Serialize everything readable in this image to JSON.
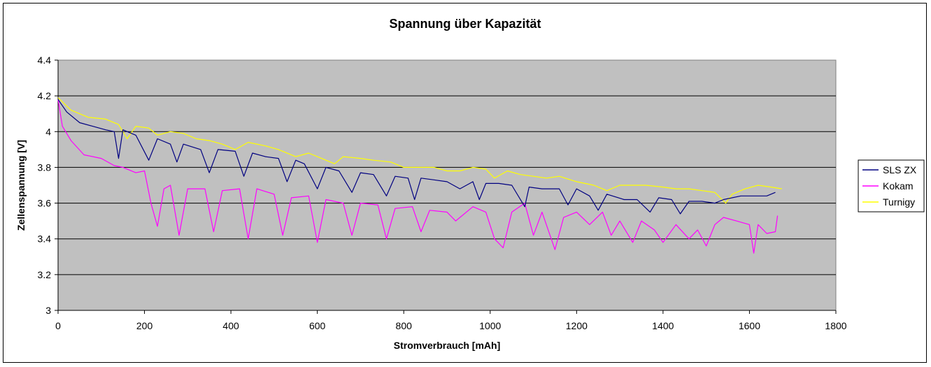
{
  "chart_data": {
    "type": "line",
    "title": "Spannung über Kapazität",
    "xlabel": "Stromverbrauch [mAh]",
    "ylabel": "Zellenspannung [V]",
    "xlim": [
      0,
      1800
    ],
    "ylim": [
      3,
      4.4
    ],
    "x_ticks": [
      "0",
      "200",
      "400",
      "600",
      "800",
      "1000",
      "1200",
      "1400",
      "1600",
      "1800"
    ],
    "y_ticks": [
      "3",
      "3.2",
      "3.4",
      "3.6",
      "3.8",
      "4",
      "4.2",
      "4.4"
    ],
    "grid": "horizontal",
    "plot_background": "#C0C0C0",
    "legend_position": "right",
    "series": [
      {
        "name": "SLS ZX",
        "color": "#000080",
        "points": [
          [
            0,
            4.18
          ],
          [
            20,
            4.11
          ],
          [
            50,
            4.05
          ],
          [
            80,
            4.03
          ],
          [
            110,
            4.01
          ],
          [
            130,
            4.0
          ],
          [
            140,
            3.85
          ],
          [
            150,
            4.01
          ],
          [
            180,
            3.98
          ],
          [
            210,
            3.84
          ],
          [
            230,
            3.96
          ],
          [
            260,
            3.93
          ],
          [
            275,
            3.83
          ],
          [
            290,
            3.93
          ],
          [
            330,
            3.9
          ],
          [
            350,
            3.77
          ],
          [
            370,
            3.9
          ],
          [
            410,
            3.89
          ],
          [
            430,
            3.75
          ],
          [
            450,
            3.88
          ],
          [
            480,
            3.86
          ],
          [
            510,
            3.85
          ],
          [
            530,
            3.72
          ],
          [
            550,
            3.84
          ],
          [
            570,
            3.82
          ],
          [
            600,
            3.68
          ],
          [
            620,
            3.8
          ],
          [
            650,
            3.78
          ],
          [
            680,
            3.66
          ],
          [
            700,
            3.77
          ],
          [
            730,
            3.76
          ],
          [
            760,
            3.64
          ],
          [
            780,
            3.75
          ],
          [
            810,
            3.74
          ],
          [
            825,
            3.62
          ],
          [
            840,
            3.74
          ],
          [
            870,
            3.73
          ],
          [
            900,
            3.72
          ],
          [
            930,
            3.68
          ],
          [
            960,
            3.72
          ],
          [
            975,
            3.62
          ],
          [
            990,
            3.71
          ],
          [
            1020,
            3.71
          ],
          [
            1050,
            3.7
          ],
          [
            1080,
            3.58
          ],
          [
            1090,
            3.69
          ],
          [
            1120,
            3.68
          ],
          [
            1160,
            3.68
          ],
          [
            1180,
            3.59
          ],
          [
            1200,
            3.68
          ],
          [
            1230,
            3.64
          ],
          [
            1250,
            3.56
          ],
          [
            1270,
            3.65
          ],
          [
            1310,
            3.62
          ],
          [
            1340,
            3.62
          ],
          [
            1370,
            3.55
          ],
          [
            1390,
            3.63
          ],
          [
            1420,
            3.62
          ],
          [
            1440,
            3.54
          ],
          [
            1460,
            3.61
          ],
          [
            1490,
            3.61
          ],
          [
            1520,
            3.6
          ],
          [
            1540,
            3.62
          ],
          [
            1580,
            3.64
          ],
          [
            1610,
            3.64
          ],
          [
            1640,
            3.64
          ],
          [
            1660,
            3.66
          ]
        ]
      },
      {
        "name": "Kokam",
        "color": "#FF00FF",
        "points": [
          [
            0,
            4.18
          ],
          [
            10,
            4.03
          ],
          [
            30,
            3.95
          ],
          [
            60,
            3.87
          ],
          [
            100,
            3.85
          ],
          [
            130,
            3.81
          ],
          [
            150,
            3.8
          ],
          [
            180,
            3.77
          ],
          [
            200,
            3.78
          ],
          [
            215,
            3.6
          ],
          [
            230,
            3.47
          ],
          [
            245,
            3.68
          ],
          [
            260,
            3.7
          ],
          [
            280,
            3.42
          ],
          [
            300,
            3.68
          ],
          [
            340,
            3.68
          ],
          [
            360,
            3.44
          ],
          [
            380,
            3.67
          ],
          [
            420,
            3.68
          ],
          [
            440,
            3.4
          ],
          [
            460,
            3.68
          ],
          [
            500,
            3.65
          ],
          [
            520,
            3.42
          ],
          [
            540,
            3.63
          ],
          [
            580,
            3.64
          ],
          [
            600,
            3.38
          ],
          [
            620,
            3.62
          ],
          [
            660,
            3.6
          ],
          [
            680,
            3.42
          ],
          [
            700,
            3.6
          ],
          [
            740,
            3.59
          ],
          [
            760,
            3.4
          ],
          [
            780,
            3.57
          ],
          [
            820,
            3.58
          ],
          [
            840,
            3.44
          ],
          [
            860,
            3.56
          ],
          [
            900,
            3.55
          ],
          [
            920,
            3.5
          ],
          [
            960,
            3.58
          ],
          [
            990,
            3.55
          ],
          [
            1010,
            3.4
          ],
          [
            1030,
            3.35
          ],
          [
            1050,
            3.55
          ],
          [
            1080,
            3.6
          ],
          [
            1100,
            3.42
          ],
          [
            1120,
            3.55
          ],
          [
            1150,
            3.34
          ],
          [
            1170,
            3.52
          ],
          [
            1200,
            3.55
          ],
          [
            1230,
            3.48
          ],
          [
            1260,
            3.55
          ],
          [
            1280,
            3.42
          ],
          [
            1300,
            3.5
          ],
          [
            1330,
            3.38
          ],
          [
            1350,
            3.5
          ],
          [
            1380,
            3.45
          ],
          [
            1400,
            3.38
          ],
          [
            1430,
            3.48
          ],
          [
            1460,
            3.4
          ],
          [
            1480,
            3.45
          ],
          [
            1500,
            3.36
          ],
          [
            1520,
            3.48
          ],
          [
            1540,
            3.52
          ],
          [
            1570,
            3.5
          ],
          [
            1600,
            3.48
          ],
          [
            1610,
            3.32
          ],
          [
            1620,
            3.48
          ],
          [
            1640,
            3.43
          ],
          [
            1660,
            3.44
          ],
          [
            1665,
            3.53
          ]
        ]
      },
      {
        "name": "Turnigy",
        "color": "#FFFF00",
        "points": [
          [
            0,
            4.19
          ],
          [
            30,
            4.12
          ],
          [
            70,
            4.08
          ],
          [
            110,
            4.07
          ],
          [
            140,
            4.04
          ],
          [
            160,
            3.96
          ],
          [
            180,
            4.03
          ],
          [
            210,
            4.02
          ],
          [
            230,
            3.98
          ],
          [
            260,
            4.0
          ],
          [
            290,
            3.99
          ],
          [
            320,
            3.96
          ],
          [
            350,
            3.95
          ],
          [
            380,
            3.93
          ],
          [
            410,
            3.9
          ],
          [
            440,
            3.94
          ],
          [
            480,
            3.92
          ],
          [
            510,
            3.9
          ],
          [
            550,
            3.86
          ],
          [
            580,
            3.88
          ],
          [
            610,
            3.85
          ],
          [
            640,
            3.82
          ],
          [
            660,
            3.86
          ],
          [
            700,
            3.85
          ],
          [
            730,
            3.84
          ],
          [
            770,
            3.83
          ],
          [
            800,
            3.8
          ],
          [
            840,
            3.8
          ],
          [
            870,
            3.8
          ],
          [
            900,
            3.78
          ],
          [
            930,
            3.78
          ],
          [
            960,
            3.8
          ],
          [
            990,
            3.79
          ],
          [
            1010,
            3.74
          ],
          [
            1040,
            3.78
          ],
          [
            1070,
            3.76
          ],
          [
            1100,
            3.75
          ],
          [
            1130,
            3.74
          ],
          [
            1160,
            3.75
          ],
          [
            1200,
            3.72
          ],
          [
            1240,
            3.7
          ],
          [
            1270,
            3.67
          ],
          [
            1300,
            3.7
          ],
          [
            1330,
            3.7
          ],
          [
            1360,
            3.7
          ],
          [
            1400,
            3.69
          ],
          [
            1430,
            3.68
          ],
          [
            1460,
            3.68
          ],
          [
            1490,
            3.67
          ],
          [
            1520,
            3.66
          ],
          [
            1545,
            3.6
          ],
          [
            1560,
            3.65
          ],
          [
            1590,
            3.68
          ],
          [
            1620,
            3.7
          ],
          [
            1650,
            3.69
          ],
          [
            1675,
            3.68
          ]
        ]
      }
    ]
  }
}
